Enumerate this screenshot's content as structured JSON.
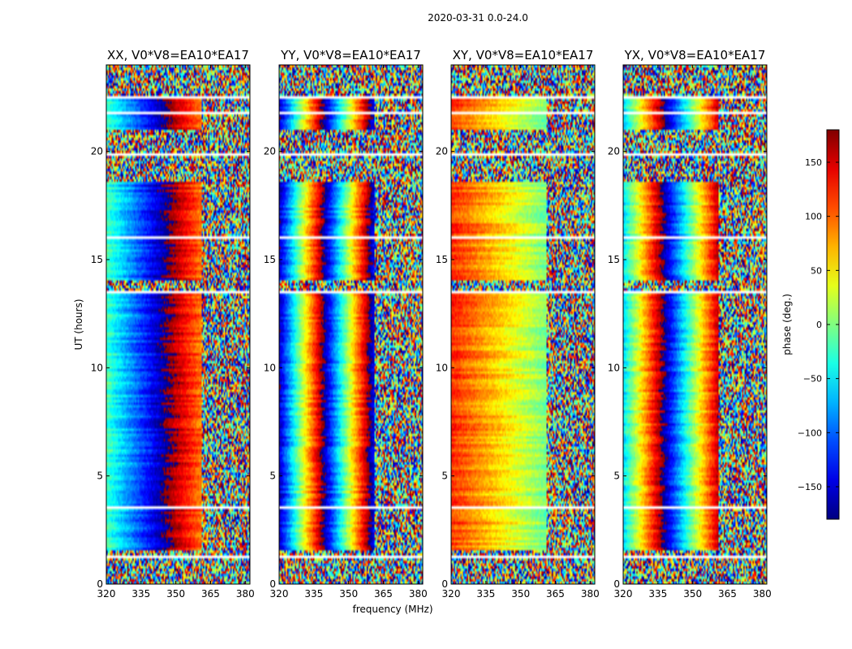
{
  "chart_data": {
    "type": "heatmap",
    "title": "2020-03-31 0.0-24.0",
    "xlabel": "frequency (MHz)",
    "ylabel": "UT (hours)",
    "xlim": [
      320,
      382
    ],
    "ylim": [
      0,
      24
    ],
    "x_ticks": [
      320,
      335,
      350,
      365,
      380
    ],
    "y_ticks": [
      0,
      5,
      10,
      15,
      20
    ],
    "colorbar": {
      "label": "phase (deg.)",
      "range": [
        -180,
        180
      ],
      "ticks": [
        -150,
        -100,
        -50,
        0,
        50,
        100,
        150
      ],
      "tick_labels": [
        "−150",
        "−100",
        "−50",
        "0",
        "50",
        "100",
        "150"
      ],
      "colormap": "jet"
    },
    "panels": [
      {
        "title": "XX, V0*V8=EA10*EA17",
        "base_phase_deg": -20,
        "phase_slope_deg_per_mhz": -6
      },
      {
        "title": "YY, V0*V8=EA10*EA17",
        "base_phase_deg": -160,
        "phase_slope_deg_per_mhz": 18
      },
      {
        "title": "XY, V0*V8=EA10*EA17",
        "base_phase_deg": 120,
        "phase_slope_deg_per_mhz": -3
      },
      {
        "title": "YX, V0*V8=EA10*EA17",
        "base_phase_deg": -60,
        "phase_slope_deg_per_mhz": 14
      }
    ],
    "coherent_band_mhz": [
      320,
      361
    ],
    "coherent_ut_ranges_hours": [
      [
        1.6,
        13.6
      ],
      [
        14.0,
        18.6
      ],
      [
        21.0,
        22.6
      ]
    ],
    "flagged_ut_ranges_hours": [
      [
        1.15,
        1.35
      ],
      [
        3.45,
        3.55
      ],
      [
        7.55,
        7.6
      ],
      [
        13.45,
        13.55
      ],
      [
        15.95,
        16.05
      ],
      [
        19.75,
        19.95
      ],
      [
        21.75,
        21.85
      ],
      [
        22.45,
        22.55
      ]
    ]
  }
}
